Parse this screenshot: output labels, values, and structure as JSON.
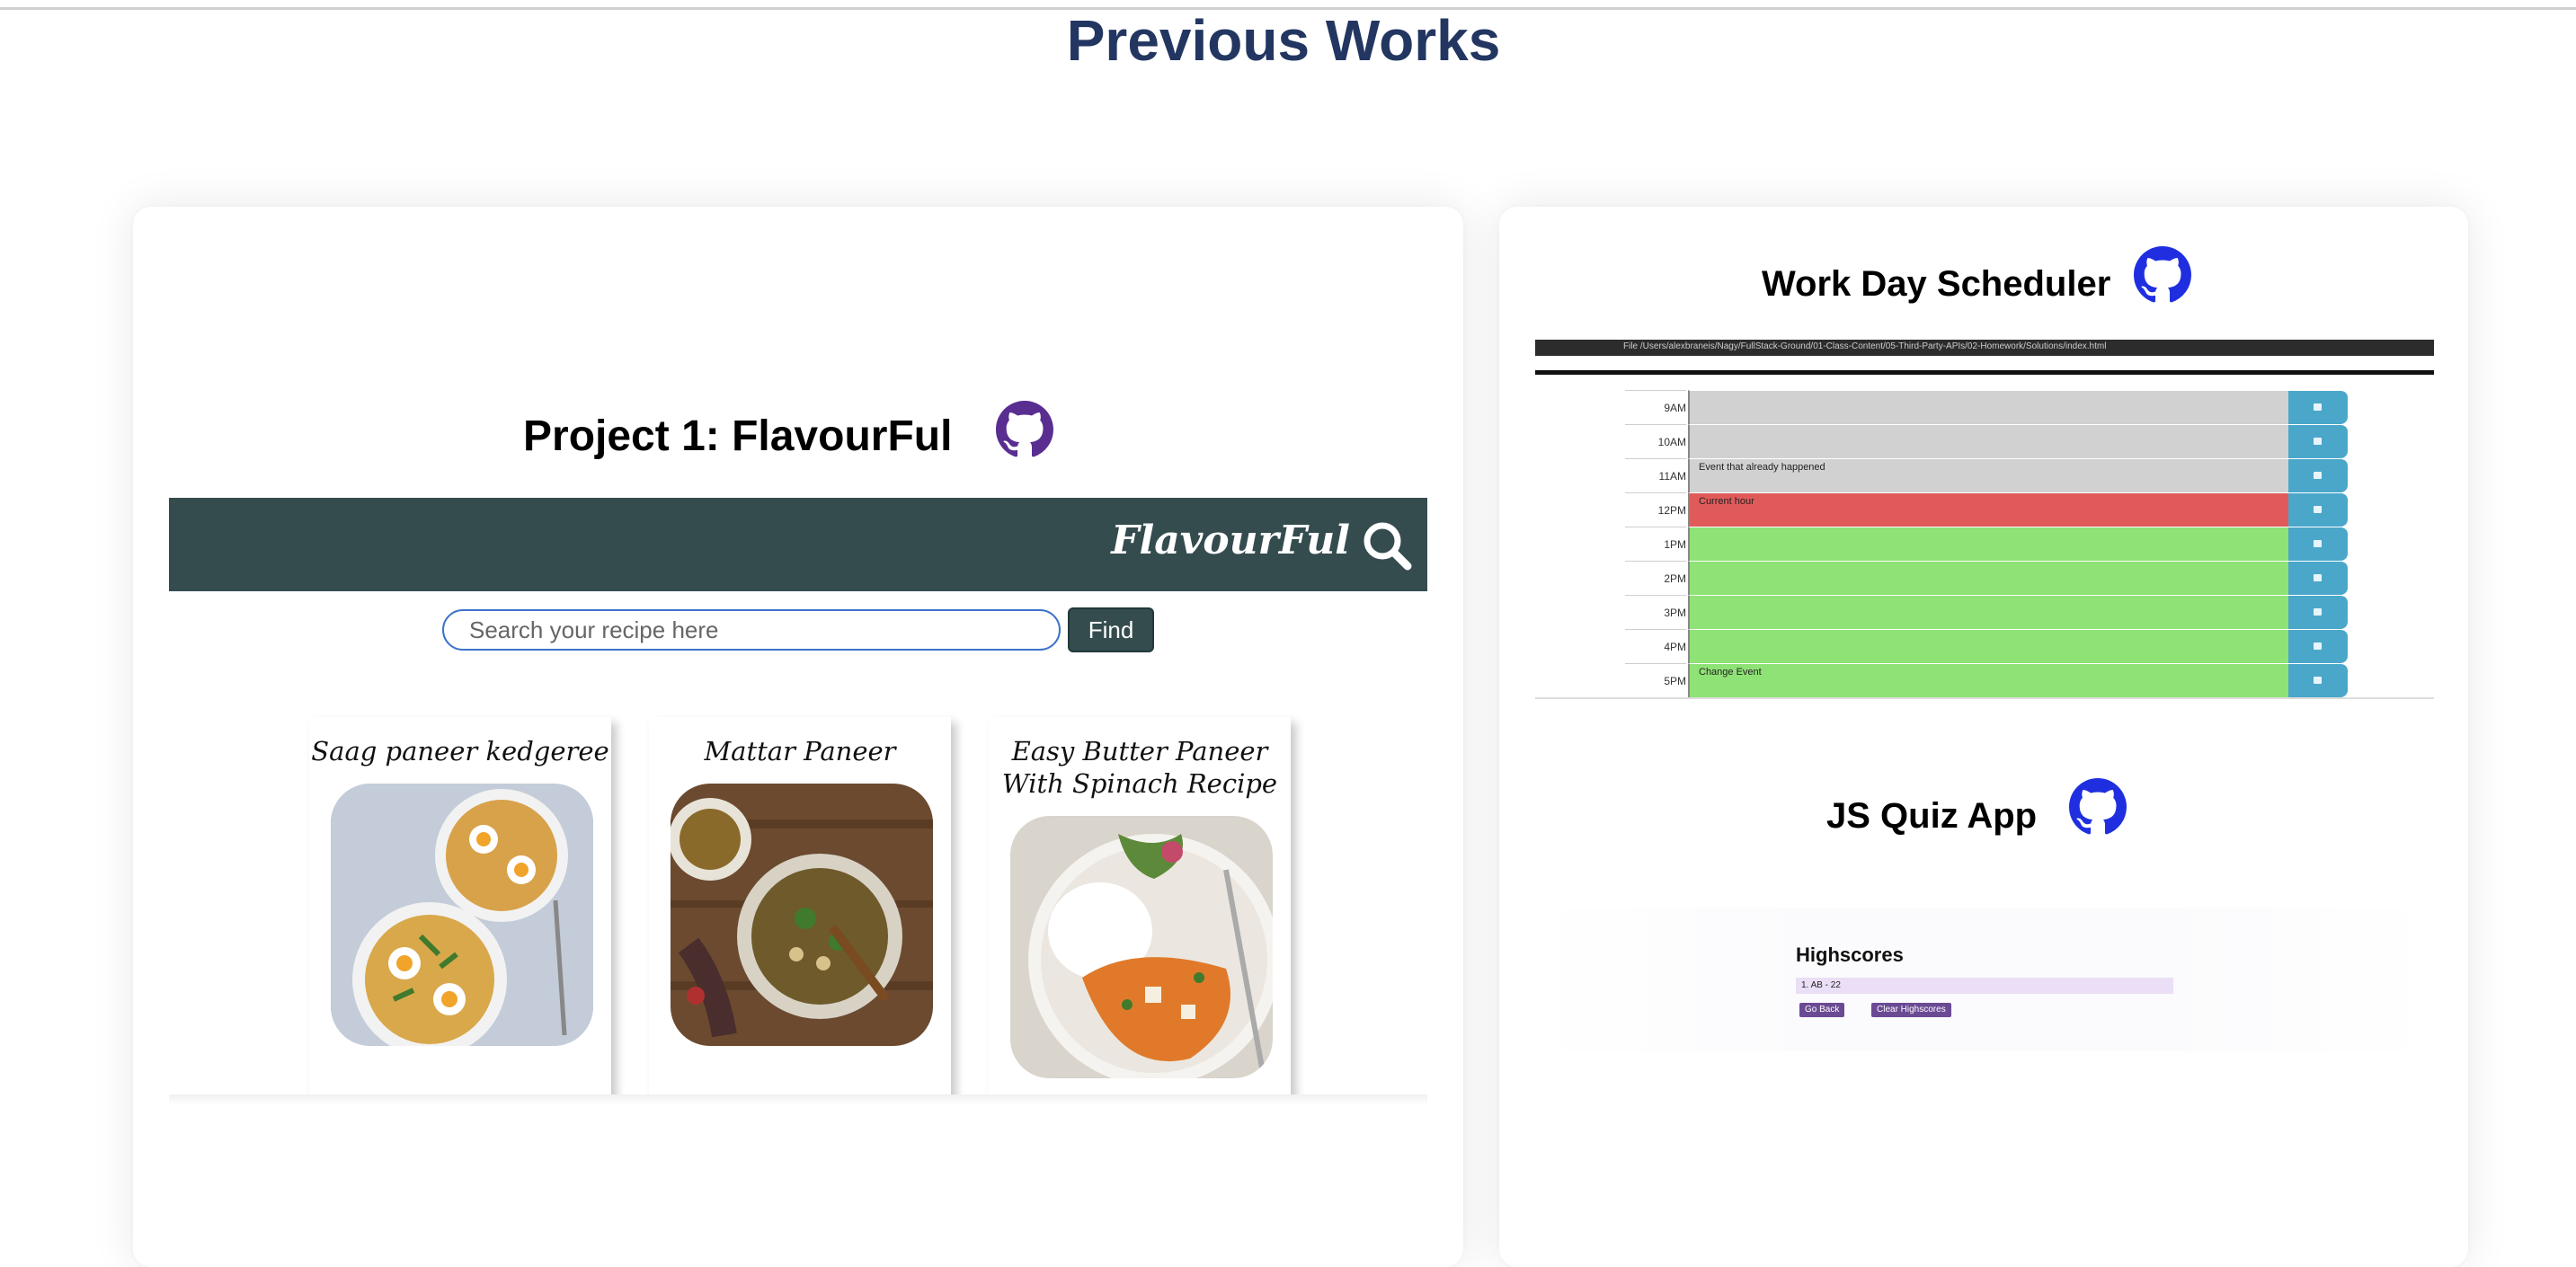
{
  "page": {
    "title": "Previous Works"
  },
  "colors": {
    "title": "#233661",
    "github_purple": "#5a2d91",
    "github_blue": "#1f2fe0",
    "ff_nav": "#354c4f",
    "sched_past": "#d1d1d1",
    "sched_present": "#e15a5a",
    "sched_future": "#8fe275",
    "sched_save": "#4aa7c9"
  },
  "projects": [
    {
      "title": "Project 1: FlavourFul",
      "icon": "github-icon",
      "screenshot": {
        "brand": "FlavourFul",
        "search_placeholder": "Search your recipe here",
        "find_label": "Find",
        "recipes": [
          {
            "title": "Saag paneer kedgeree"
          },
          {
            "title": "Mattar Paneer"
          },
          {
            "title": "Easy Butter Paneer With Spinach Recipe"
          }
        ]
      }
    },
    {
      "title": "Work Day Scheduler",
      "icon": "github-icon",
      "screenshot": {
        "url": "File  /Users/alexbraneis/Nagy/FullStack-Ground/01-Class-Content/05-Third-Party-APIs/02-Homework/Solutions/index.html",
        "rows": [
          {
            "hour": "9AM",
            "text": "",
            "state": "past"
          },
          {
            "hour": "10AM",
            "text": "",
            "state": "past"
          },
          {
            "hour": "11AM",
            "text": "Event that already happened",
            "state": "past"
          },
          {
            "hour": "12PM",
            "text": "Current hour",
            "state": "present"
          },
          {
            "hour": "1PM",
            "text": "",
            "state": "future"
          },
          {
            "hour": "2PM",
            "text": "",
            "state": "future"
          },
          {
            "hour": "3PM",
            "text": "",
            "state": "future"
          },
          {
            "hour": "4PM",
            "text": "",
            "state": "future"
          },
          {
            "hour": "5PM",
            "text": "Change Event",
            "state": "future"
          }
        ]
      }
    },
    {
      "title": "JS Quiz App",
      "icon": "github-icon",
      "screenshot": {
        "heading": "Highscores",
        "entry": "1. AB - 22",
        "go_back": "Go Back",
        "clear": "Clear Highscores"
      }
    }
  ]
}
